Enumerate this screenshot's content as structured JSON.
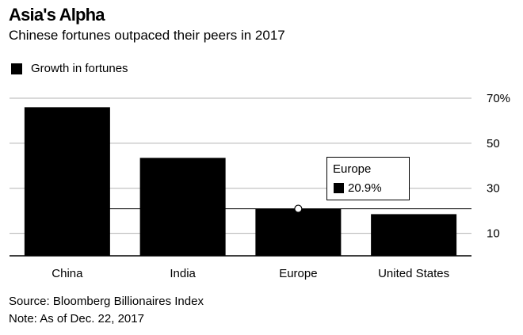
{
  "title": "Asia's Alpha",
  "subtitle": "Chinese fortunes outpaced their peers in 2017",
  "source": "Source: Bloomberg Billionaires Index",
  "note": "Note: As of Dec. 22, 2017",
  "colors": {
    "bar": "#000000",
    "grid": "#b3b3b3",
    "background": "#ffffff"
  },
  "tooltip": {
    "category": "Europe",
    "value_label": "20.9%"
  },
  "chart_data": {
    "type": "bar",
    "categories": [
      "China",
      "India",
      "Europe",
      "United States"
    ],
    "series": [
      {
        "name": "Growth in fortunes",
        "values": [
          66,
          43.5,
          20.9,
          18.5
        ]
      }
    ],
    "ylim": [
      0,
      70
    ],
    "yticks": [
      10,
      30,
      50,
      70
    ],
    "ytick_labels": [
      "10",
      "30",
      "50",
      "70%"
    ],
    "reference_line": 20.9,
    "grid": true,
    "legend_position": "top-left",
    "y_axis_side": "right"
  }
}
